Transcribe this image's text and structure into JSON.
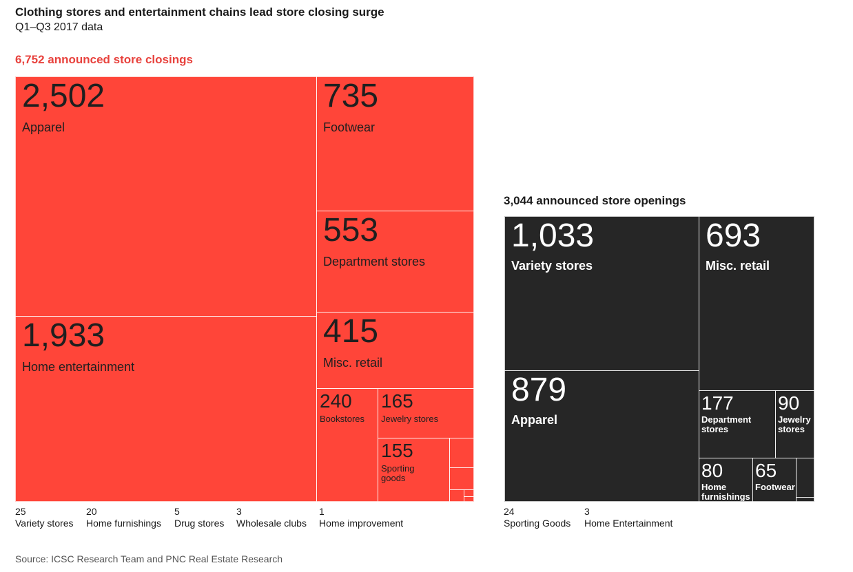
{
  "chart_data": [
    {
      "type": "treemap",
      "title": "Clothing stores and entertainment chains lead store closing surge",
      "subtitle": "Q1–Q3 2017 data",
      "heading": "6,752 announced store closings",
      "total": 6752,
      "color": "#ff4539",
      "items": [
        {
          "label": "Apparel",
          "value": 2502,
          "display": "2,502"
        },
        {
          "label": "Home entertainment",
          "value": 1933,
          "display": "1,933"
        },
        {
          "label": "Footwear",
          "value": 735,
          "display": "735"
        },
        {
          "label": "Department stores",
          "value": 553,
          "display": "553"
        },
        {
          "label": "Misc. retail",
          "value": 415,
          "display": "415"
        },
        {
          "label": "Bookstores",
          "value": 240,
          "display": "240"
        },
        {
          "label": "Jewelry stores",
          "value": 165,
          "display": "165"
        },
        {
          "label": "Sporting goods",
          "value": 155,
          "display": "155"
        },
        {
          "label": "Variety stores",
          "value": 25,
          "display": "25"
        },
        {
          "label": "Home furnishings",
          "value": 20,
          "display": "20"
        },
        {
          "label": "Drug stores",
          "value": 5,
          "display": "5"
        },
        {
          "label": "Wholesale clubs",
          "value": 3,
          "display": "3"
        },
        {
          "label": "Home improvement",
          "value": 1,
          "display": "1"
        }
      ]
    },
    {
      "type": "treemap",
      "heading": "3,044 announced store openings",
      "total": 3044,
      "color": "#262626",
      "items": [
        {
          "label": "Variety stores",
          "value": 1033,
          "display": "1,033"
        },
        {
          "label": "Apparel",
          "value": 879,
          "display": "879"
        },
        {
          "label": "Misc. retail",
          "value": 693,
          "display": "693"
        },
        {
          "label": "Department stores",
          "value": 177,
          "display": "177"
        },
        {
          "label": "Jewelry stores",
          "value": 90,
          "display": "90"
        },
        {
          "label": "Home furnishings",
          "value": 80,
          "display": "80"
        },
        {
          "label": "Footwear",
          "value": 65,
          "display": "65"
        },
        {
          "label": "Sporting Goods",
          "value": 24,
          "display": "24"
        },
        {
          "label": "Home Entertainment",
          "value": 3,
          "display": "3"
        }
      ]
    }
  ],
  "source": "Source: ICSC Research Team and PNC Real Estate Research"
}
